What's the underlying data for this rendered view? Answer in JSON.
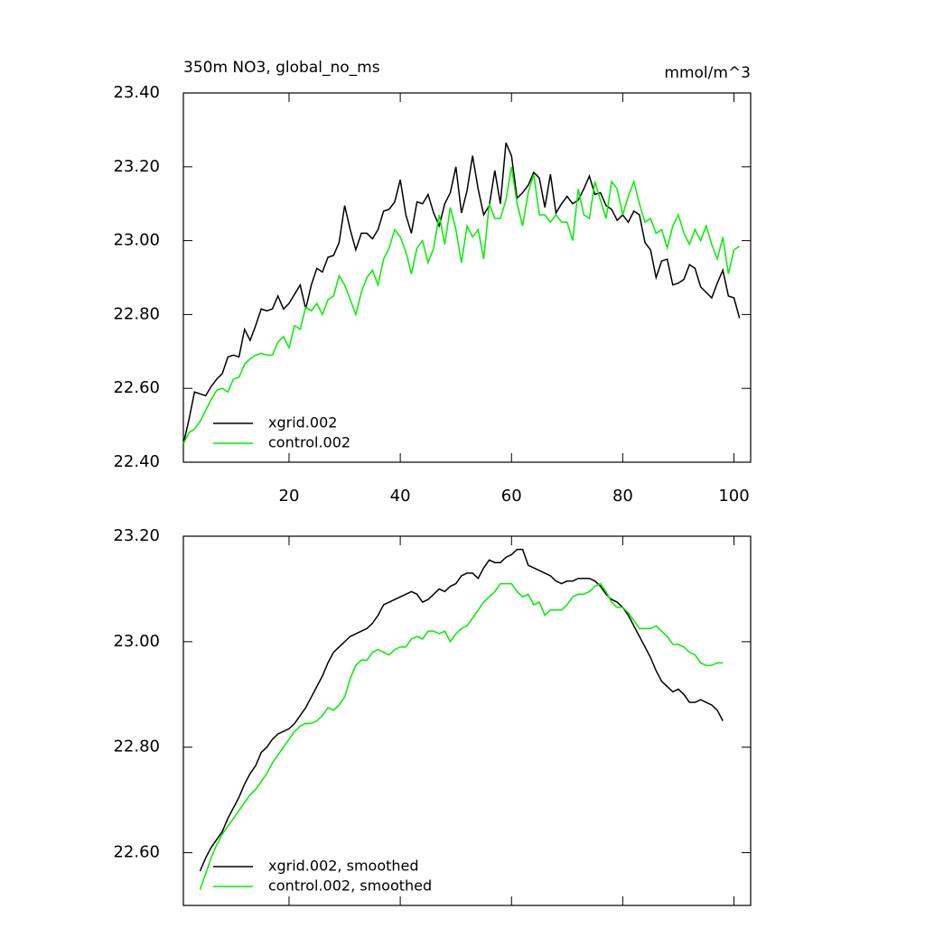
{
  "chart_data": [
    {
      "type": "line",
      "title": "350m NO3, global_no_ms",
      "units": "mmol/m^3",
      "xlim": [
        1,
        103
      ],
      "xticks": [
        20,
        40,
        60,
        80,
        100
      ],
      "ylim": [
        22.4,
        23.4
      ],
      "yticks": [
        {
          "value": 22.4,
          "label": "22.40"
        },
        {
          "value": 22.6,
          "label": "22.60"
        },
        {
          "value": 22.8,
          "label": "22.80"
        },
        {
          "value": 23.0,
          "label": "23.00"
        },
        {
          "value": 23.2,
          "label": "23.20"
        },
        {
          "value": 23.4,
          "label": "23.40"
        }
      ],
      "x_tick_labels": true,
      "legend": "lower left",
      "series": [
        {
          "name": "xgrid.002",
          "color": "#000000",
          "x": [
            1,
            2,
            3,
            4,
            5,
            6,
            7,
            8,
            9,
            10,
            11,
            12,
            13,
            14,
            15,
            16,
            17,
            18,
            19,
            20,
            21,
            22,
            23,
            24,
            25,
            26,
            27,
            28,
            29,
            30,
            31,
            32,
            33,
            34,
            35,
            36,
            37,
            38,
            39,
            40,
            41,
            42,
            43,
            44,
            45,
            46,
            47,
            48,
            49,
            50,
            51,
            52,
            53,
            54,
            55,
            56,
            57,
            58,
            59,
            60,
            61,
            62,
            63,
            64,
            65,
            66,
            67,
            68,
            69,
            70,
            71,
            72,
            73,
            74,
            75,
            76,
            77,
            78,
            79,
            80,
            81,
            82,
            83,
            84,
            85,
            86,
            87,
            88,
            89,
            90,
            91,
            92,
            93,
            94,
            95,
            96,
            97,
            98,
            99,
            100,
            101
          ],
          "values": [
            22.45,
            22.515,
            22.59,
            22.585,
            22.58,
            22.605,
            22.625,
            22.64,
            22.685,
            22.69,
            22.685,
            22.76,
            22.73,
            22.77,
            22.815,
            22.81,
            22.815,
            22.85,
            22.815,
            22.83,
            22.855,
            22.88,
            22.815,
            22.88,
            22.925,
            22.915,
            22.955,
            22.96,
            22.995,
            23.095,
            23.03,
            22.975,
            23.02,
            23.02,
            23.005,
            23.03,
            23.08,
            23.085,
            23.105,
            23.165,
            23.07,
            23.02,
            23.105,
            23.1,
            23.125,
            23.075,
            23.04,
            23.1,
            23.13,
            23.2,
            23.075,
            23.135,
            23.23,
            23.14,
            23.07,
            23.095,
            23.19,
            23.1,
            23.265,
            23.23,
            23.115,
            23.13,
            23.15,
            23.185,
            23.17,
            23.09,
            23.18,
            23.075,
            23.1,
            23.12,
            23.1,
            23.11,
            23.14,
            23.175,
            23.125,
            23.13,
            23.095,
            23.085,
            23.055,
            23.07,
            23.05,
            23.08,
            23.07,
            22.995,
            22.975,
            22.9,
            22.945,
            22.95,
            22.88,
            22.885,
            22.895,
            22.935,
            22.925,
            22.875,
            22.86,
            22.845,
            22.885,
            22.92,
            22.85,
            22.845,
            22.79
          ]
        },
        {
          "name": "control.002",
          "color": "#00ee00",
          "x": [
            1,
            2,
            3,
            4,
            5,
            6,
            7,
            8,
            9,
            10,
            11,
            12,
            13,
            14,
            15,
            16,
            17,
            18,
            19,
            20,
            21,
            22,
            23,
            24,
            25,
            26,
            27,
            28,
            29,
            30,
            31,
            32,
            33,
            34,
            35,
            36,
            37,
            38,
            39,
            40,
            41,
            42,
            43,
            44,
            45,
            46,
            47,
            48,
            49,
            50,
            51,
            52,
            53,
            54,
            55,
            56,
            57,
            58,
            59,
            60,
            61,
            62,
            63,
            64,
            65,
            66,
            67,
            68,
            69,
            70,
            71,
            72,
            73,
            74,
            75,
            76,
            77,
            78,
            79,
            80,
            81,
            82,
            83,
            84,
            85,
            86,
            87,
            88,
            89,
            90,
            91,
            92,
            93,
            94,
            95,
            96,
            97,
            98,
            99,
            100,
            101
          ],
          "values": [
            22.45,
            22.48,
            22.49,
            22.51,
            22.54,
            22.57,
            22.595,
            22.6,
            22.59,
            22.625,
            22.63,
            22.665,
            22.68,
            22.69,
            22.695,
            22.69,
            22.69,
            22.725,
            22.74,
            22.71,
            22.77,
            22.76,
            22.82,
            22.81,
            22.83,
            22.8,
            22.84,
            22.85,
            22.905,
            22.88,
            22.84,
            22.8,
            22.86,
            22.9,
            22.92,
            22.88,
            22.95,
            22.98,
            23.03,
            23.01,
            22.97,
            22.91,
            22.98,
            23.0,
            22.94,
            22.98,
            23.07,
            22.99,
            23.09,
            23.03,
            22.94,
            23.04,
            23.01,
            23.03,
            22.95,
            23.1,
            23.06,
            23.06,
            23.11,
            23.2,
            23.1,
            23.04,
            23.13,
            23.18,
            23.07,
            23.07,
            23.05,
            23.07,
            23.05,
            23.05,
            23.0,
            23.14,
            23.07,
            23.06,
            23.16,
            23.11,
            23.06,
            23.16,
            23.14,
            23.07,
            23.12,
            23.16,
            23.1,
            23.05,
            23.06,
            23.02,
            23.03,
            22.98,
            23.04,
            23.07,
            23.02,
            22.99,
            23.03,
            23.0,
            23.04,
            22.99,
            22.95,
            23.01,
            22.91,
            22.975,
            22.985
          ]
        }
      ]
    },
    {
      "type": "line",
      "xlim": [
        1,
        103
      ],
      "xticks": [
        20,
        40,
        60,
        80,
        100
      ],
      "ylim": [
        22.5,
        23.2
      ],
      "yticks": [
        {
          "value": 22.6,
          "label": "22.60"
        },
        {
          "value": 22.8,
          "label": "22.80"
        },
        {
          "value": 23.0,
          "label": "23.00"
        },
        {
          "value": 23.2,
          "label": "23.20"
        }
      ],
      "x_tick_labels": false,
      "legend": "lower left",
      "series": [
        {
          "name": "xgrid.002, smoothed",
          "color": "#000000",
          "x": [
            4,
            5,
            6,
            7,
            8,
            9,
            10,
            11,
            12,
            13,
            14,
            15,
            16,
            17,
            18,
            19,
            20,
            21,
            22,
            23,
            24,
            25,
            26,
            27,
            28,
            29,
            30,
            31,
            32,
            33,
            34,
            35,
            36,
            37,
            38,
            39,
            40,
            41,
            42,
            43,
            44,
            45,
            46,
            47,
            48,
            49,
            50,
            51,
            52,
            53,
            54,
            55,
            56,
            57,
            58,
            59,
            60,
            61,
            62,
            63,
            64,
            65,
            66,
            67,
            68,
            69,
            70,
            71,
            72,
            73,
            74,
            75,
            76,
            77,
            78,
            79,
            80,
            81,
            82,
            83,
            84,
            85,
            86,
            87,
            88,
            89,
            90,
            91,
            92,
            93,
            94,
            95,
            96,
            97,
            98
          ],
          "values": [
            22.565,
            22.59,
            22.61,
            22.625,
            22.64,
            22.665,
            22.685,
            22.705,
            22.73,
            22.75,
            22.765,
            22.79,
            22.8,
            22.815,
            22.825,
            22.83,
            22.835,
            22.845,
            22.86,
            22.875,
            22.895,
            22.915,
            22.935,
            22.96,
            22.98,
            22.99,
            23.0,
            23.01,
            23.015,
            23.02,
            23.025,
            23.035,
            23.05,
            23.07,
            23.075,
            23.08,
            23.085,
            23.09,
            23.095,
            23.09,
            23.075,
            23.08,
            23.09,
            23.1,
            23.095,
            23.105,
            23.11,
            23.125,
            23.13,
            23.13,
            23.12,
            23.14,
            23.155,
            23.15,
            23.15,
            23.16,
            23.165,
            23.175,
            23.175,
            23.145,
            23.14,
            23.135,
            23.13,
            23.125,
            23.115,
            23.11,
            23.115,
            23.115,
            23.12,
            23.12,
            23.12,
            23.115,
            23.105,
            23.09,
            23.08,
            23.075,
            23.065,
            23.05,
            23.03,
            23.01,
            22.99,
            22.97,
            22.945,
            22.925,
            22.915,
            22.905,
            22.91,
            22.9,
            22.885,
            22.885,
            22.89,
            22.885,
            22.88,
            22.87,
            22.85
          ]
        },
        {
          "name": "control.002, smoothed",
          "color": "#00ee00",
          "x": [
            4,
            5,
            6,
            7,
            8,
            9,
            10,
            11,
            12,
            13,
            14,
            15,
            16,
            17,
            18,
            19,
            20,
            21,
            22,
            23,
            24,
            25,
            26,
            27,
            28,
            29,
            30,
            31,
            32,
            33,
            34,
            35,
            36,
            37,
            38,
            39,
            40,
            41,
            42,
            43,
            44,
            45,
            46,
            47,
            48,
            49,
            50,
            51,
            52,
            53,
            54,
            55,
            56,
            57,
            58,
            59,
            60,
            61,
            62,
            63,
            64,
            65,
            66,
            67,
            68,
            69,
            70,
            71,
            72,
            73,
            74,
            75,
            76,
            77,
            78,
            79,
            80,
            81,
            82,
            83,
            84,
            85,
            86,
            87,
            88,
            89,
            90,
            91,
            92,
            93,
            94,
            95,
            96,
            97,
            98
          ],
          "values": [
            22.53,
            22.56,
            22.59,
            22.615,
            22.635,
            22.65,
            22.665,
            22.68,
            22.695,
            22.71,
            22.72,
            22.735,
            22.75,
            22.77,
            22.785,
            22.8,
            22.815,
            22.83,
            22.84,
            22.845,
            22.845,
            22.85,
            22.86,
            22.875,
            22.87,
            22.88,
            22.895,
            22.93,
            22.955,
            22.965,
            22.965,
            22.98,
            22.985,
            22.98,
            22.975,
            22.985,
            22.99,
            22.99,
            23.005,
            23.01,
            23.005,
            23.02,
            23.02,
            23.015,
            23.02,
            23.0,
            23.015,
            23.025,
            23.03,
            23.045,
            23.06,
            23.075,
            23.085,
            23.095,
            23.11,
            23.11,
            23.11,
            23.095,
            23.085,
            23.09,
            23.07,
            23.075,
            23.05,
            23.06,
            23.06,
            23.06,
            23.07,
            23.085,
            23.09,
            23.09,
            23.095,
            23.105,
            23.11,
            23.095,
            23.075,
            23.065,
            23.065,
            23.055,
            23.04,
            23.025,
            23.025,
            23.025,
            23.03,
            23.02,
            23.01,
            22.995,
            22.995,
            22.99,
            22.98,
            22.975,
            22.96,
            22.955,
            22.955,
            22.96,
            22.96
          ]
        }
      ]
    }
  ]
}
